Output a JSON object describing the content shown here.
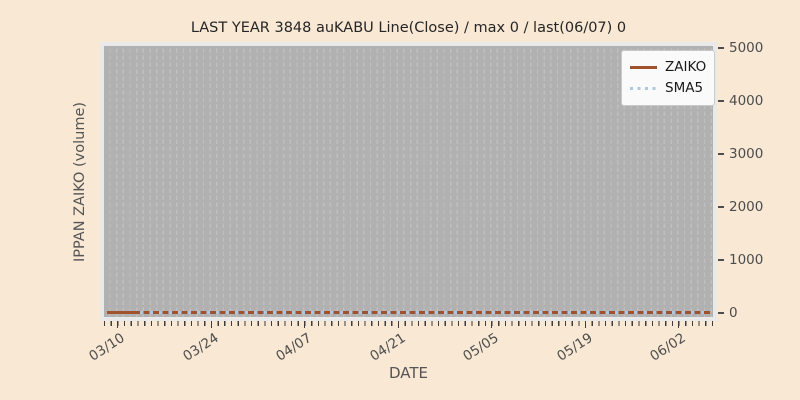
{
  "chart": {
    "title": "LAST YEAR 3848 auKABU Line(Close) / max 0 / last(06/07) 0",
    "xlabel": "DATE",
    "ylabel": "IPPAN ZAIKO (volume)"
  },
  "legend": {
    "position": "upper right",
    "items": [
      {
        "label": "ZAIKO",
        "color": "#a0522d",
        "style": "solid"
      },
      {
        "label": "SMA5",
        "color": "#abc9e4",
        "style": "dotted"
      }
    ]
  },
  "palette": {
    "figure_background": "#f8e8d4",
    "plot_background": "#b1b1b1",
    "plot_border": "#e9e9e9",
    "gridline": "#bfbfbf",
    "tick_text": "#4d4d4d",
    "title_text": "#262626"
  },
  "chart_data": {
    "type": "line",
    "title": "LAST YEAR 3848 auKABU Line(Close) / max 0 / last(06/07) 0",
    "xlabel": "DATE",
    "ylabel": "IPPAN ZAIKO (volume)",
    "x_tick_labels": [
      "03/10",
      "03/24",
      "04/07",
      "04/21",
      "05/05",
      "05/19",
      "06/02"
    ],
    "y_ticks": [
      0,
      1000,
      2000,
      3000,
      4000,
      5000
    ],
    "ylim": [
      0,
      5000
    ],
    "y_axis_side": "right",
    "grid": "vertical dashed daily gridlines",
    "legend_position": "upper right",
    "series": [
      {
        "name": "ZAIKO",
        "color": "#a0522d",
        "style": "solid",
        "values_note": "flat line at 0 across full date range",
        "constant_value": 0
      },
      {
        "name": "SMA5",
        "color": "#abc9e4",
        "style": "dotted",
        "values_note": "flat line at 0, starts 5 sessions after range start",
        "constant_value": 0
      }
    ],
    "annotations": {
      "max": 0,
      "last_date": "06/07",
      "last_value": 0
    }
  }
}
